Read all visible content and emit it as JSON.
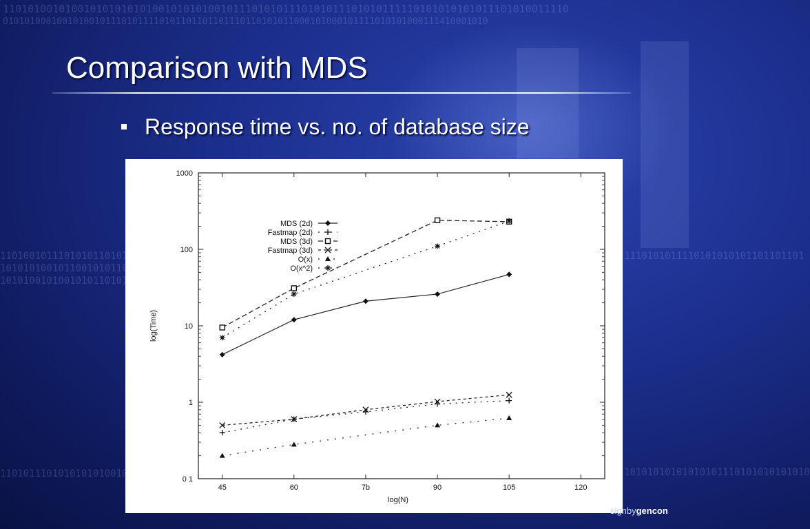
{
  "slide": {
    "title": "Comparison with MDS",
    "bullet": "Response time vs. no. of database size",
    "brand_prefix": "signby",
    "brand_name": "gencon"
  },
  "background": {
    "bit_rows": [
      "1101010010100101010101010010101010010111010101110101011101010111110101010101011101010011110",
      "010101000100101001011101011110101101101101110110101011000101000101111010101000111410001010",
      "1101001011101010110101010101100",
      "1010101001011001010110101010110",
      "1010100101001010110101010010111",
      "11010111010101010100101110101011",
      "1110101011110101010101101101101",
      "10101010101010101110101010101010"
    ]
  },
  "chart_data": {
    "type": "line",
    "xlabel": "log(N)",
    "ylabel": "log(Time)",
    "y_scale": "log",
    "xlim": [
      40,
      125
    ],
    "ylim": [
      0.1,
      1000
    ],
    "x_ticks": [
      45,
      60,
      75,
      90,
      105,
      120
    ],
    "x_tick_labels": [
      "45",
      "60",
      "7b",
      "90",
      "105",
      "120"
    ],
    "y_ticks": [
      0.1,
      1,
      10,
      100,
      1000
    ],
    "y_tick_labels": [
      "0 1",
      "1",
      "10",
      "100",
      "1000"
    ],
    "legend_position": "top-left",
    "grid": false,
    "series": [
      {
        "name": "MDS (2d)",
        "marker": "diamond",
        "dash": "",
        "x": [
          45,
          60,
          75,
          90,
          105
        ],
        "y": [
          4.2,
          12,
          21,
          26,
          47
        ]
      },
      {
        "name": "Fastmap (2d)",
        "marker": "plus",
        "dash": "2 7",
        "x": [
          45,
          60,
          75,
          90,
          105
        ],
        "y": [
          0.4,
          0.6,
          0.75,
          0.95,
          1.05
        ]
      },
      {
        "name": "MDS (3d)",
        "marker": "square",
        "dash": "7 4",
        "x": [
          45,
          60,
          90,
          105
        ],
        "y": [
          9.5,
          31,
          240,
          230
        ]
      },
      {
        "name": "Fastmap (3d)",
        "marker": "cross",
        "dash": "4 4",
        "x": [
          45,
          60,
          75,
          90,
          105
        ],
        "y": [
          0.5,
          0.6,
          0.8,
          1.02,
          1.25
        ]
      },
      {
        "name": "O(x)",
        "marker": "triangle",
        "dash": "2 9",
        "x": [
          45,
          60,
          90,
          105
        ],
        "y": [
          0.2,
          0.28,
          0.5,
          0.62
        ]
      },
      {
        "name": "O(x^2)",
        "marker": "star",
        "dash": "2 7",
        "x": [
          45,
          60,
          90,
          105
        ],
        "y": [
          7,
          26,
          110,
          235
        ]
      }
    ]
  }
}
